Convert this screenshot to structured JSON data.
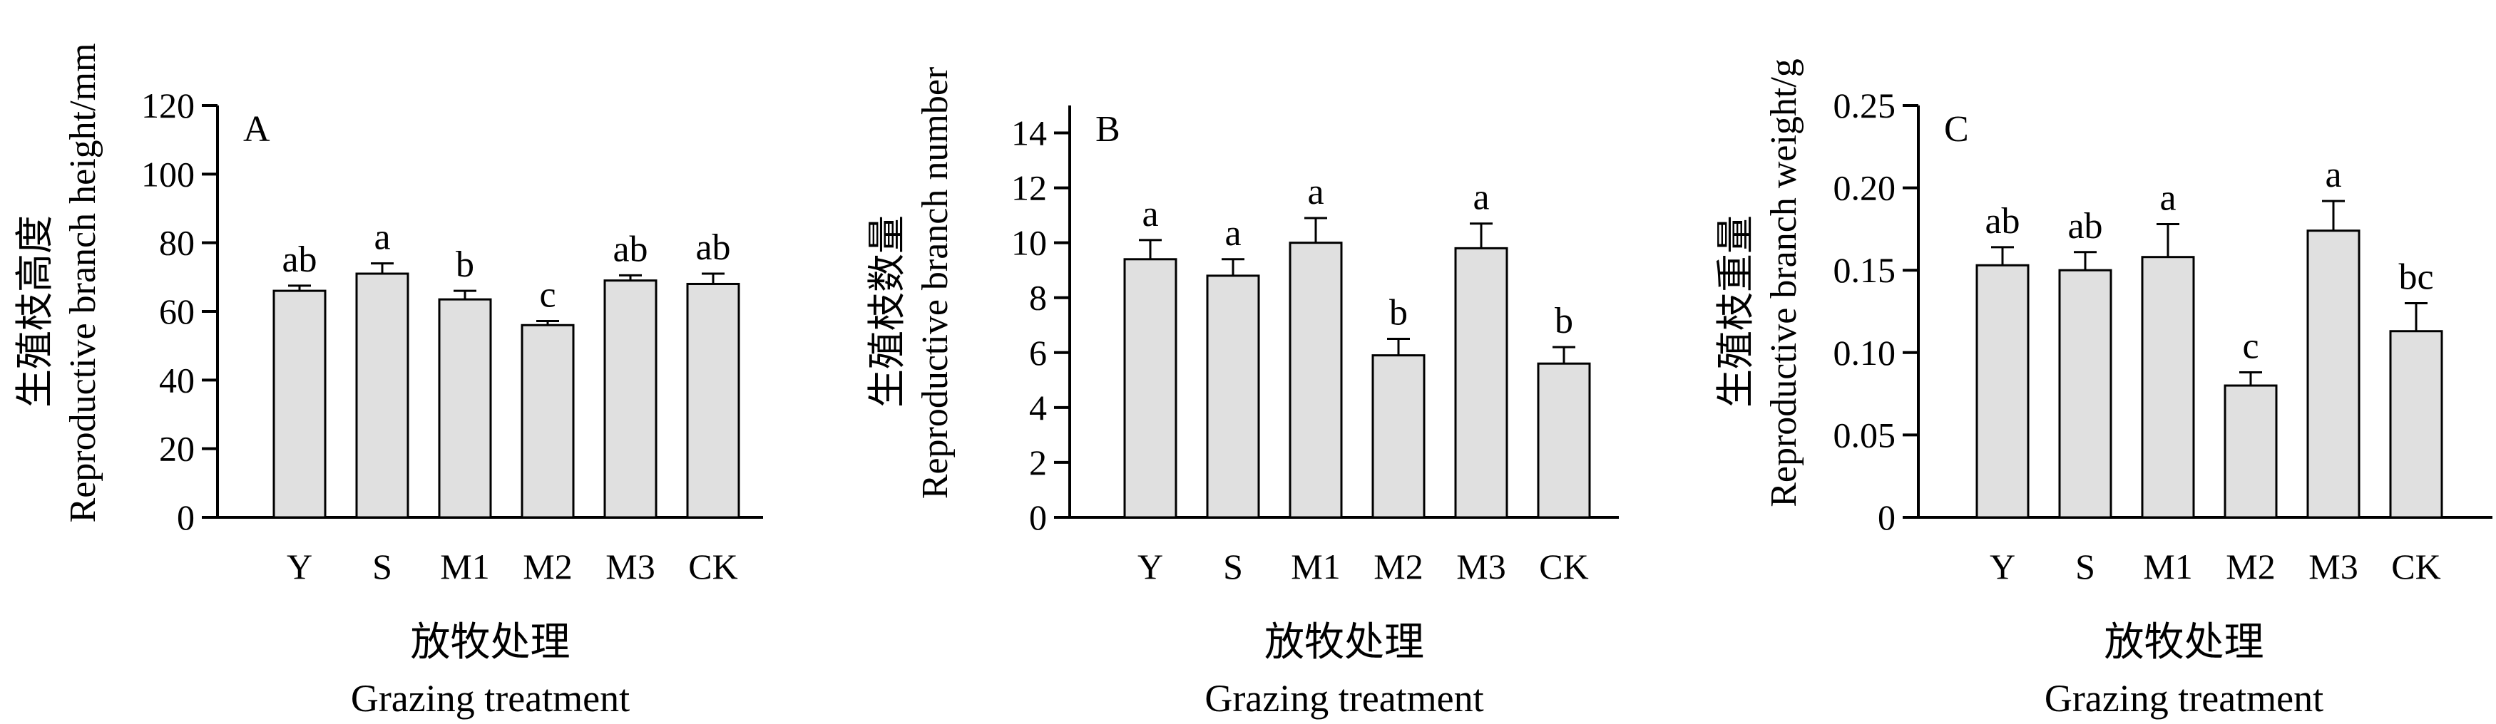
{
  "chart_data": [
    {
      "type": "bar",
      "panel": "A",
      "categories": [
        "Y",
        "S",
        "M1",
        "M2",
        "M3",
        "CK"
      ],
      "values": [
        66,
        71,
        63.5,
        56,
        69,
        68
      ],
      "errors": [
        1.5,
        3,
        2.5,
        1.2,
        1.5,
        3
      ],
      "significance": [
        "ab",
        "a",
        "b",
        "c",
        "ab",
        "ab"
      ],
      "ylim": [
        0,
        120
      ],
      "yticks": [
        0,
        20,
        40,
        60,
        80,
        100,
        120
      ],
      "ylabel_cn": "生殖枝高度",
      "ylabel_en": "Reproductive branch height/mm",
      "xlabel_cn": "放牧处理",
      "xlabel_en": "Grazing treatment",
      "grid": false
    },
    {
      "type": "bar",
      "panel": "B",
      "categories": [
        "Y",
        "S",
        "M1",
        "M2",
        "M3",
        "CK"
      ],
      "values": [
        9.4,
        8.8,
        10,
        5.9,
        9.8,
        5.6
      ],
      "errors": [
        0.7,
        0.6,
        0.9,
        0.6,
        0.9,
        0.6
      ],
      "significance": [
        "a",
        "a",
        "a",
        "b",
        "a",
        "b"
      ],
      "ylim": [
        0,
        15
      ],
      "yticks": [
        0,
        2,
        4,
        6,
        8,
        10,
        12,
        14
      ],
      "ylabel_cn": "生殖枝数量",
      "ylabel_en": "Reproductive branch number",
      "xlabel_cn": "放牧处理",
      "xlabel_en": "Grazing treatment",
      "grid": false
    },
    {
      "type": "bar",
      "panel": "C",
      "categories": [
        "Y",
        "S",
        "M1",
        "M2",
        "M3",
        "CK"
      ],
      "values": [
        0.153,
        0.15,
        0.158,
        0.08,
        0.174,
        0.113
      ],
      "errors": [
        0.011,
        0.011,
        0.02,
        0.008,
        0.018,
        0.017
      ],
      "significance": [
        "ab",
        "ab",
        "a",
        "c",
        "a",
        "bc"
      ],
      "ylim": [
        0,
        0.25
      ],
      "yticks": [
        0,
        0.05,
        0.1,
        0.15,
        0.2,
        0.25
      ],
      "ytick_labels": [
        "0",
        "0.05",
        "0.10",
        "0.15",
        "0.20",
        "0.25"
      ],
      "ylabel_cn": "生殖枝重量",
      "ylabel_en": "Reproductive branch weight/g",
      "xlabel_cn": "放牧处理",
      "xlabel_en": "Grazing treatment",
      "grid": false
    }
  ]
}
